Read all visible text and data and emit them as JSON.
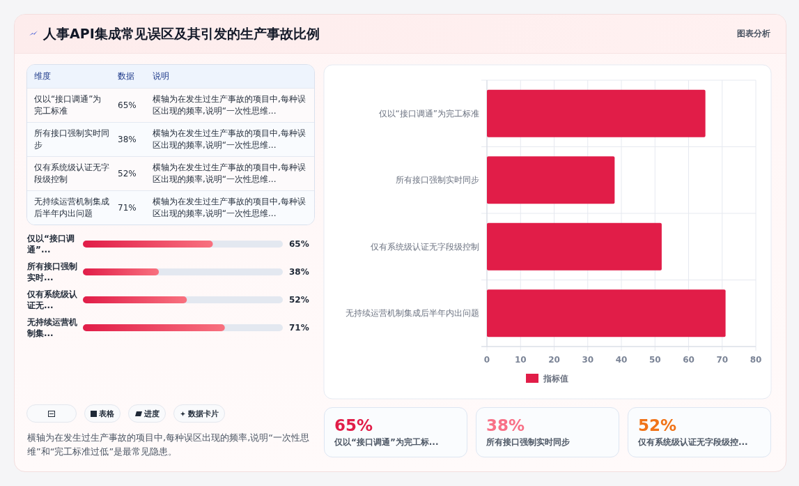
{
  "chart_data": [
    {
      "type": "bar",
      "orientation": "horizontal",
      "categories": [
        "仅以“接口调通”为完工标准",
        "所有接口强制实时同步",
        "仅有系统级认证无字段级控制",
        "无持续运营机制集成后半年内出问题"
      ],
      "series": [
        {
          "name": "指标值",
          "color": "#e11d48",
          "values": [
            65,
            38,
            52,
            71
          ]
        }
      ],
      "xlim": [
        0,
        80
      ],
      "xticks": [
        0,
        10,
        20,
        30,
        40,
        50,
        60,
        70,
        80
      ],
      "grid": true,
      "legend": "bottom",
      "annotations": [
        "图表分析",
        "表格",
        "进度",
        "数据卡片",
        "横轴为在发生过生产事故的项目中,每种误区出现的频率,说明“一次性思维”和“完工标准过低”是最常见隐患。"
      ]
    },
    {
      "type": "other",
      "title": "人事API集成常见误区及其引发的生产事故比例",
      "categories": [
        "仅以“接口调通”为完工标准",
        "所有接口强制实时同步",
        "仅有系统级认证无字段级控制",
        "无持续运营机制集成后半年内出问题"
      ],
      "value_labels": [
        "65%",
        "38%",
        "52%",
        "71%"
      ],
      "annotations": [
        "维度",
        "数据",
        "说明",
        "横轴为在发生过生产事故的项目中,每种误区出现的频率,说明“一次性思维...",
        "横轴为在发生过生产事故的项目中,每种误区出现的频率,说明“一次性思维...",
        "横轴为在发生过生产事故的项目中,每种误区出现的频率,说明“一次性思维...",
        "横轴为在发生过生产事故的项目中,每种误区出现的频率,说明“一次性思维..."
      ]
    },
    {
      "type": "bar",
      "orientation": "horizontal",
      "categories": [
        "仅以“接口调通”...",
        "所有接口强制实时...",
        "仅有系统级认证无...",
        "无持续运营机制集..."
      ],
      "values": [
        65,
        38,
        52,
        71
      ],
      "value_labels": [
        "65%",
        "38%",
        "52%",
        "71%"
      ],
      "color": "#e11d48",
      "xlim": [
        0,
        100
      ]
    },
    {
      "type": "other",
      "categories": [
        "仅以“接口调通”为完工标...",
        "所有接口强制实时同步",
        "仅有系统级认证无字段级控..."
      ],
      "value_labels": [
        "65%",
        "38%",
        "52%"
      ]
    }
  ]
}
